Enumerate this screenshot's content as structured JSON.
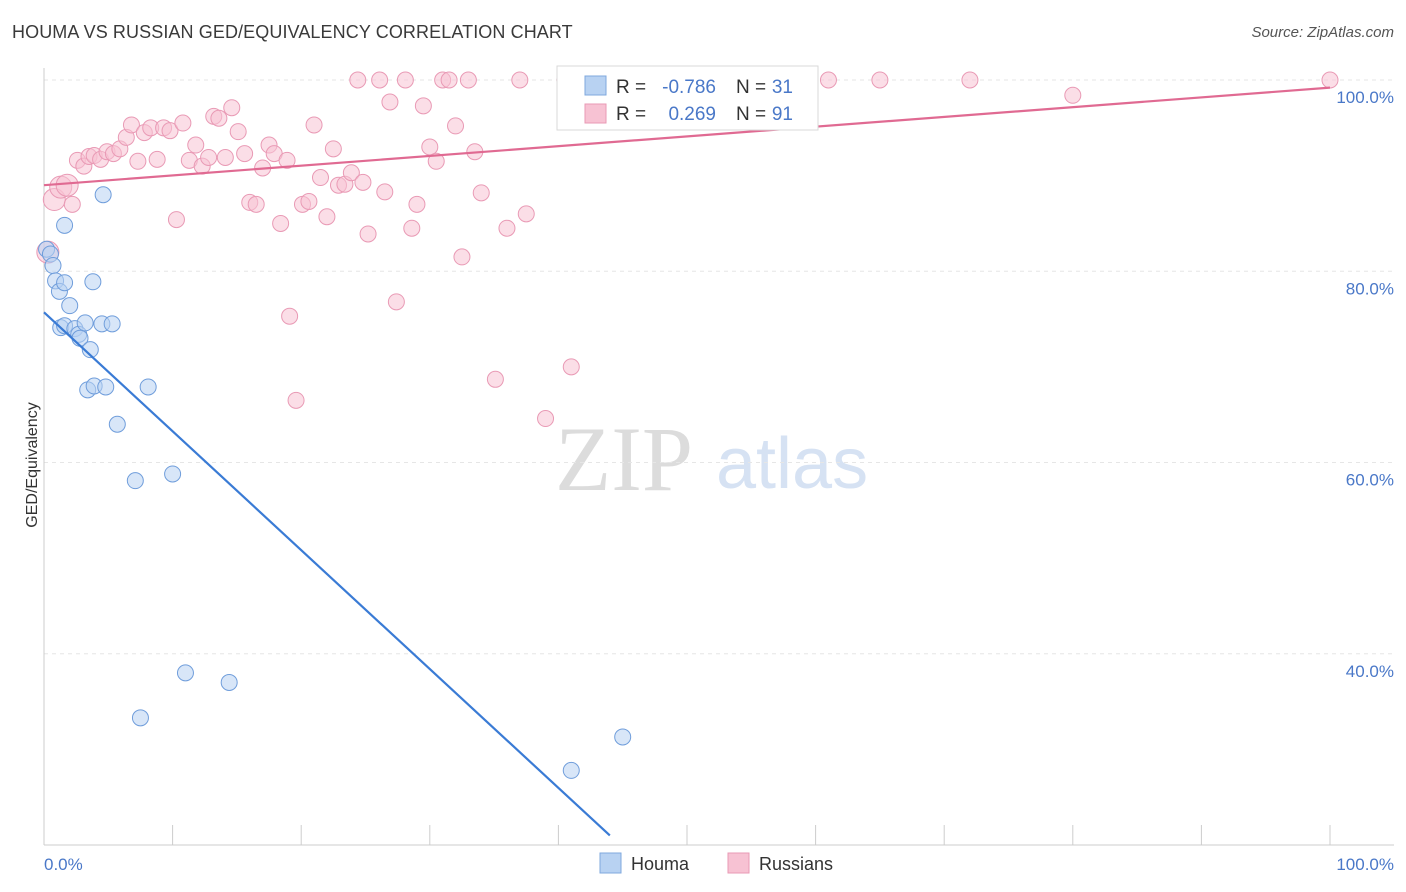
{
  "title": "HOUMA VS RUSSIAN GED/EQUIVALENCY CORRELATION CHART",
  "source": "Source: ZipAtlas.com",
  "watermark": {
    "zip": "ZIP",
    "atlas": "atlas"
  },
  "colors": {
    "houma": "#4a86d8",
    "russians": "#e8729a",
    "houma_fill": "#b8d2f2",
    "russians_fill": "#f7c2d3",
    "tick_text": "#4a78c8"
  },
  "legend": {
    "rows": [
      {
        "r_label": "R =",
        "r_value": "-0.786",
        "n_label": "N =",
        "n_value": "31"
      },
      {
        "r_label": "R =",
        "r_value": "0.269",
        "n_label": "N =",
        "n_value": "91"
      }
    ]
  },
  "bottom_legend": [
    "Houma",
    "Russians"
  ],
  "chart_data": {
    "type": "scatter",
    "title": "HOUMA VS RUSSIAN GED/EQUIVALENCY CORRELATION CHART",
    "xlabel": "",
    "ylabel": "GED/Equivalency",
    "xlim": [
      0,
      100
    ],
    "ylim": [
      20,
      100
    ],
    "x_tick_labels": [
      "0.0%",
      "100.0%"
    ],
    "y_tick_labels": [
      "100.0%",
      "80.0%",
      "60.0%",
      "40.0%"
    ],
    "y_ticks": [
      100,
      80,
      60,
      40
    ],
    "grid": true,
    "legend_position": "top-center",
    "series": [
      {
        "name": "Houma",
        "color": "#4a86d8",
        "r": -0.786,
        "n": 31,
        "trend": {
          "x": [
            0,
            44
          ],
          "y": [
            75.7,
            21
          ]
        },
        "points": [
          [
            0.2,
            82.3
          ],
          [
            0.5,
            81.8
          ],
          [
            0.7,
            80.6
          ],
          [
            0.9,
            79
          ],
          [
            1.2,
            77.9
          ],
          [
            1.6,
            78.8
          ],
          [
            1.3,
            74.1
          ],
          [
            1.6,
            74.3
          ],
          [
            2.0,
            76.4
          ],
          [
            2.4,
            74.0
          ],
          [
            2.7,
            73.4
          ],
          [
            2.8,
            73.0
          ],
          [
            3.2,
            74.6
          ],
          [
            3.6,
            71.8
          ],
          [
            3.4,
            67.6
          ],
          [
            3.9,
            68.0
          ],
          [
            3.8,
            78.9
          ],
          [
            4.5,
            74.5
          ],
          [
            4.6,
            88.0
          ],
          [
            4.8,
            67.9
          ],
          [
            5.3,
            74.5
          ],
          [
            1.6,
            84.8
          ],
          [
            5.7,
            64.0
          ],
          [
            7.1,
            58.1
          ],
          [
            8.1,
            67.9
          ],
          [
            10.0,
            58.8
          ],
          [
            11.0,
            38.0
          ],
          [
            14.4,
            37.0
          ],
          [
            7.5,
            33.3
          ],
          [
            41.0,
            27.8
          ],
          [
            45.0,
            31.3
          ]
        ]
      },
      {
        "name": "Russians",
        "color": "#e8729a",
        "r": 0.269,
        "n": 91,
        "trend": {
          "x": [
            0,
            100
          ],
          "y": [
            89.0,
            99.2
          ]
        },
        "points": [
          [
            0.3,
            82.0
          ],
          [
            0.8,
            87.5
          ],
          [
            1.3,
            88.8
          ],
          [
            1.8,
            89.0
          ],
          [
            2.2,
            87.0
          ],
          [
            2.6,
            91.6
          ],
          [
            3.1,
            91.0
          ],
          [
            3.5,
            92.0
          ],
          [
            3.9,
            92.1
          ],
          [
            4.4,
            91.7
          ],
          [
            4.9,
            92.5
          ],
          [
            5.4,
            92.3
          ],
          [
            5.9,
            92.8
          ],
          [
            6.4,
            94.0
          ],
          [
            6.8,
            95.3
          ],
          [
            7.3,
            91.5
          ],
          [
            7.8,
            94.5
          ],
          [
            8.3,
            95.0
          ],
          [
            8.8,
            91.7
          ],
          [
            9.3,
            95.0
          ],
          [
            9.8,
            94.7
          ],
          [
            10.3,
            85.4
          ],
          [
            10.8,
            95.5
          ],
          [
            11.3,
            91.6
          ],
          [
            11.8,
            93.2
          ],
          [
            12.3,
            91.0
          ],
          [
            12.8,
            91.9
          ],
          [
            13.2,
            96.2
          ],
          [
            13.6,
            96.0
          ],
          [
            14.1,
            91.9
          ],
          [
            14.6,
            97.1
          ],
          [
            15.1,
            94.6
          ],
          [
            15.6,
            92.3
          ],
          [
            16.0,
            87.2
          ],
          [
            16.5,
            87.0
          ],
          [
            17.0,
            90.8
          ],
          [
            17.5,
            93.2
          ],
          [
            17.9,
            92.3
          ],
          [
            18.4,
            85.0
          ],
          [
            18.9,
            91.6
          ],
          [
            19.1,
            75.3
          ],
          [
            19.6,
            66.5
          ],
          [
            20.1,
            87.0
          ],
          [
            20.6,
            87.3
          ],
          [
            21.0,
            95.3
          ],
          [
            21.5,
            89.8
          ],
          [
            22.0,
            85.7
          ],
          [
            22.5,
            92.8
          ],
          [
            22.9,
            89.0
          ],
          [
            23.4,
            89.1
          ],
          [
            23.9,
            90.3
          ],
          [
            24.4,
            100.0
          ],
          [
            24.8,
            89.3
          ],
          [
            25.2,
            83.9
          ],
          [
            26.1,
            100.0
          ],
          [
            26.5,
            88.3
          ],
          [
            26.9,
            97.7
          ],
          [
            27.4,
            76.8
          ],
          [
            28.1,
            100.0
          ],
          [
            28.6,
            84.5
          ],
          [
            29.0,
            87.0
          ],
          [
            29.5,
            97.3
          ],
          [
            30.0,
            93.0
          ],
          [
            30.5,
            91.5
          ],
          [
            31.0,
            100.0
          ],
          [
            31.5,
            100.0
          ],
          [
            32.0,
            95.2
          ],
          [
            32.5,
            81.5
          ],
          [
            33.0,
            100.0
          ],
          [
            33.5,
            92.5
          ],
          [
            34.0,
            88.2
          ],
          [
            35.1,
            68.7
          ],
          [
            36.0,
            84.5
          ],
          [
            37.0,
            100.0
          ],
          [
            37.5,
            86.0
          ],
          [
            39.0,
            64.6
          ],
          [
            40.5,
            100.0
          ],
          [
            41.0,
            70.0
          ],
          [
            44.0,
            100.0
          ],
          [
            47.0,
            100.0
          ],
          [
            49.0,
            100.0
          ],
          [
            51.5,
            100.0
          ],
          [
            52.5,
            100.0
          ],
          [
            55.0,
            100.0
          ],
          [
            57.0,
            100.0
          ],
          [
            59.0,
            100.0
          ],
          [
            61.0,
            100.0
          ],
          [
            65.0,
            100.0
          ],
          [
            72.0,
            100.0
          ],
          [
            80.0,
            98.4
          ],
          [
            100.0,
            100.0
          ]
        ]
      }
    ]
  }
}
